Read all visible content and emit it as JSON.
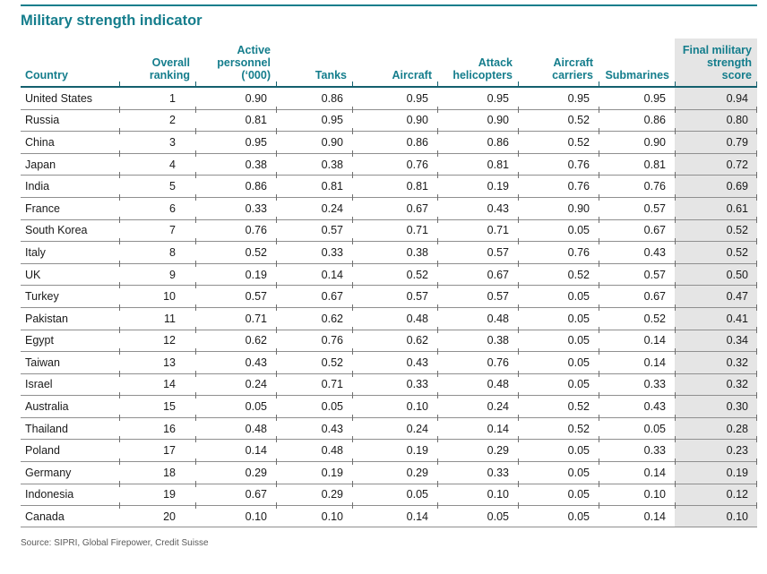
{
  "page": {
    "title": "Military strength indicator",
    "source_note": "Source: SIPRI, Global Firepower, Credit Suisse"
  },
  "colors": {
    "accent_teal": "#147d8c",
    "header_rule_teal": "#14606e",
    "row_line_gray": "#8f8f8f",
    "highlight_column_bg": "#e5e5e5",
    "body_text": "#1a1a1a",
    "source_text": "#5a5a5a"
  },
  "table": {
    "columns": [
      {
        "label": "Country",
        "align": "left",
        "highlight": false
      },
      {
        "label": "Overall\nranking",
        "align": "right",
        "highlight": false
      },
      {
        "label": "Active\npersonnel\n(‘000)",
        "align": "right",
        "highlight": false
      },
      {
        "label": "Tanks",
        "align": "right",
        "highlight": false
      },
      {
        "label": "Aircraft",
        "align": "right",
        "highlight": false
      },
      {
        "label": "Attack\nhelicopters",
        "align": "right",
        "highlight": false
      },
      {
        "label": "Aircraft\ncarriers",
        "align": "right",
        "highlight": false
      },
      {
        "label": "Submarines",
        "align": "right",
        "highlight": false
      },
      {
        "label": "Final military\nstrength\nscore",
        "align": "right",
        "highlight": true
      }
    ],
    "rows": [
      [
        "United States",
        "1",
        "0.90",
        "0.86",
        "0.95",
        "0.95",
        "0.95",
        "0.95",
        "0.94"
      ],
      [
        "Russia",
        "2",
        "0.81",
        "0.95",
        "0.90",
        "0.90",
        "0.52",
        "0.86",
        "0.80"
      ],
      [
        "China",
        "3",
        "0.95",
        "0.90",
        "0.86",
        "0.86",
        "0.52",
        "0.90",
        "0.79"
      ],
      [
        "Japan",
        "4",
        "0.38",
        "0.38",
        "0.76",
        "0.81",
        "0.76",
        "0.81",
        "0.72"
      ],
      [
        "India",
        "5",
        "0.86",
        "0.81",
        "0.81",
        "0.19",
        "0.76",
        "0.76",
        "0.69"
      ],
      [
        "France",
        "6",
        "0.33",
        "0.24",
        "0.67",
        "0.43",
        "0.90",
        "0.57",
        "0.61"
      ],
      [
        "South Korea",
        "7",
        "0.76",
        "0.57",
        "0.71",
        "0.71",
        "0.05",
        "0.67",
        "0.52"
      ],
      [
        "Italy",
        "8",
        "0.52",
        "0.33",
        "0.38",
        "0.57",
        "0.76",
        "0.43",
        "0.52"
      ],
      [
        "UK",
        "9",
        "0.19",
        "0.14",
        "0.52",
        "0.67",
        "0.52",
        "0.57",
        "0.50"
      ],
      [
        "Turkey",
        "10",
        "0.57",
        "0.67",
        "0.57",
        "0.57",
        "0.05",
        "0.67",
        "0.47"
      ],
      [
        "Pakistan",
        "11",
        "0.71",
        "0.62",
        "0.48",
        "0.48",
        "0.05",
        "0.52",
        "0.41"
      ],
      [
        "Egypt",
        "12",
        "0.62",
        "0.76",
        "0.62",
        "0.38",
        "0.05",
        "0.14",
        "0.34"
      ],
      [
        "Taiwan",
        "13",
        "0.43",
        "0.52",
        "0.43",
        "0.76",
        "0.05",
        "0.14",
        "0.32"
      ],
      [
        "Israel",
        "14",
        "0.24",
        "0.71",
        "0.33",
        "0.48",
        "0.05",
        "0.33",
        "0.32"
      ],
      [
        "Australia",
        "15",
        "0.05",
        "0.05",
        "0.10",
        "0.24",
        "0.52",
        "0.43",
        "0.30"
      ],
      [
        "Thailand",
        "16",
        "0.48",
        "0.43",
        "0.24",
        "0.14",
        "0.52",
        "0.05",
        "0.28"
      ],
      [
        "Poland",
        "17",
        "0.14",
        "0.48",
        "0.19",
        "0.29",
        "0.05",
        "0.33",
        "0.23"
      ],
      [
        "Germany",
        "18",
        "0.29",
        "0.19",
        "0.29",
        "0.33",
        "0.05",
        "0.14",
        "0.19"
      ],
      [
        "Indonesia",
        "19",
        "0.67",
        "0.29",
        "0.05",
        "0.10",
        "0.05",
        "0.10",
        "0.12"
      ],
      [
        "Canada",
        "20",
        "0.10",
        "0.10",
        "0.14",
        "0.05",
        "0.05",
        "0.14",
        "0.10"
      ]
    ]
  }
}
